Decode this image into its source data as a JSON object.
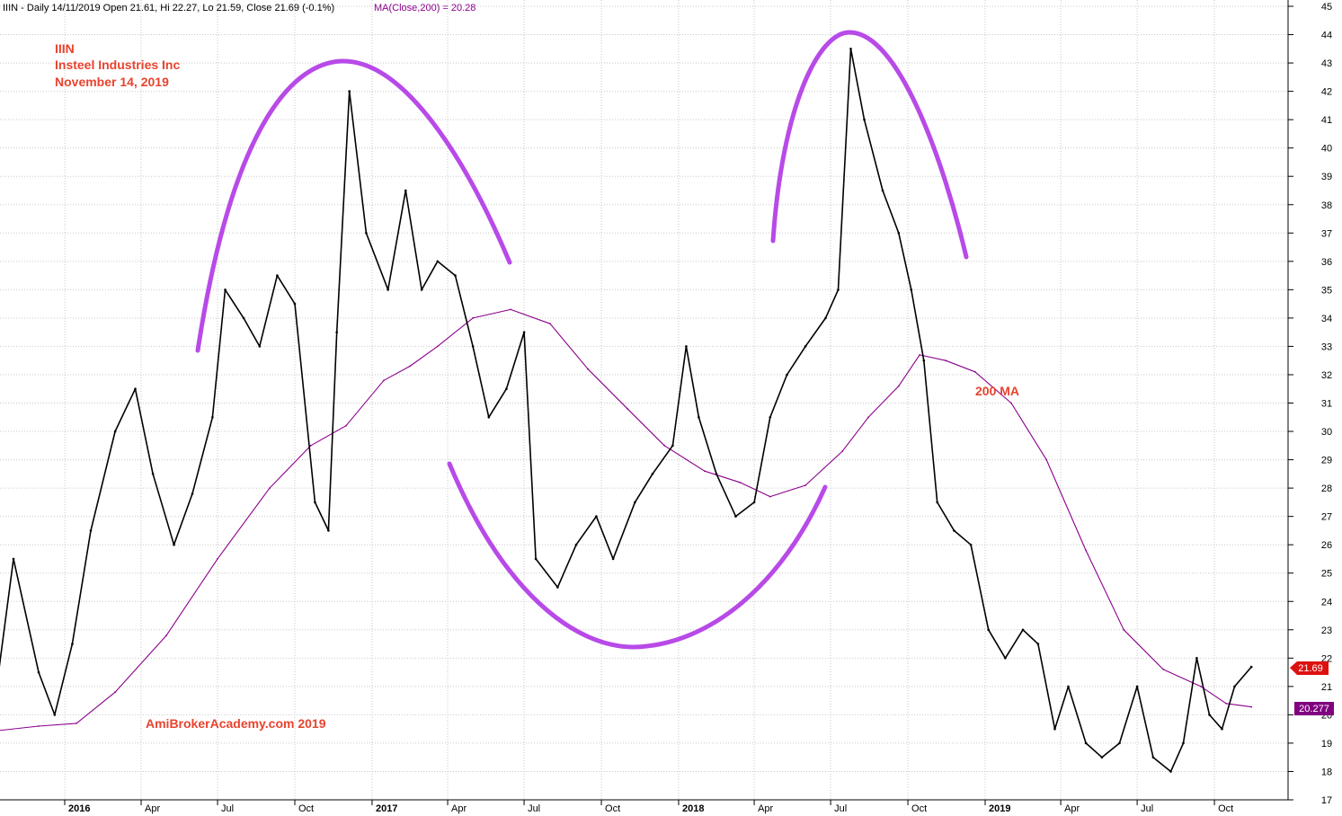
{
  "header": {
    "symbol_info": "IIIN - Daily 14/11/2019 Open 21.61, Hi 22.27, Lo 21.59, Close 21.69 (-0.1%)",
    "ma_info": "MA(Close,200) = 20.28"
  },
  "annotations": {
    "ticker": "IIIN",
    "company": "Insteel Industries Inc",
    "date": "November 14, 2019",
    "watermark": "AmiBrokerAcademy.com  2019",
    "ma_label": "200 MA"
  },
  "price_tags": {
    "last_close": "21.69",
    "ma_value": "20.277"
  },
  "colors": {
    "price": "#000000",
    "ma": "#8b008b",
    "arc": "#b84ae8",
    "annotation": "#e8432e",
    "close_tag": "#dd1111",
    "ma_tag": "#800080",
    "grid": "#c8c8c8"
  },
  "chart_data": {
    "type": "line",
    "title": "",
    "xlabel": "",
    "ylabel": "",
    "ylim": [
      17,
      45
    ],
    "yticks": [
      17,
      18,
      19,
      20,
      21,
      22,
      23,
      24,
      25,
      26,
      27,
      28,
      29,
      30,
      31,
      32,
      33,
      34,
      35,
      36,
      37,
      38,
      39,
      40,
      41,
      42,
      43,
      44,
      45
    ],
    "x_tick_labels": [
      "2016",
      "Apr",
      "Jul",
      "Oct",
      "2017",
      "Apr",
      "Jul",
      "Oct",
      "2018",
      "Apr",
      "Jul",
      "Oct",
      "2019",
      "Apr",
      "Jul",
      "Oct"
    ],
    "x_tick_dates": [
      "2016-01",
      "2016-04",
      "2016-07",
      "2016-10",
      "2017-01",
      "2017-04",
      "2017-07",
      "2017-10",
      "2018-01",
      "2018-04",
      "2018-07",
      "2018-10",
      "2019-01",
      "2019-04",
      "2019-07",
      "2019-10"
    ],
    "grid": true,
    "series": [
      {
        "name": "IIIN",
        "x": [
          "2015-10-01",
          "2015-11-01",
          "2015-12-01",
          "2015-12-20",
          "2016-01-10",
          "2016-02-01",
          "2016-03-01",
          "2016-03-25",
          "2016-04-15",
          "2016-05-10",
          "2016-06-01",
          "2016-06-25",
          "2016-07-10",
          "2016-08-01",
          "2016-08-20",
          "2016-09-10",
          "2016-10-01",
          "2016-10-25",
          "2016-11-10",
          "2016-11-20",
          "2016-12-05",
          "2016-12-25",
          "2017-01-20",
          "2017-02-10",
          "2017-03-01",
          "2017-03-20",
          "2017-04-10",
          "2017-05-01",
          "2017-05-20",
          "2017-06-10",
          "2017-07-01",
          "2017-07-15",
          "2017-08-10",
          "2017-09-01",
          "2017-09-25",
          "2017-10-15",
          "2017-11-10",
          "2017-12-01",
          "2017-12-25",
          "2018-01-10",
          "2018-01-25",
          "2018-02-15",
          "2018-03-10",
          "2018-04-01",
          "2018-04-20",
          "2018-05-10",
          "2018-06-01",
          "2018-06-25",
          "2018-07-10",
          "2018-07-25",
          "2018-08-10",
          "2018-09-01",
          "2018-09-20",
          "2018-10-05",
          "2018-10-20",
          "2018-11-05",
          "2018-11-25",
          "2018-12-15",
          "2019-01-05",
          "2019-01-25",
          "2019-02-15",
          "2019-03-05",
          "2019-03-25",
          "2019-04-10",
          "2019-05-01",
          "2019-05-20",
          "2019-06-10",
          "2019-07-01",
          "2019-07-20",
          "2019-08-10",
          "2019-08-25",
          "2019-09-10",
          "2019-09-25",
          "2019-10-10",
          "2019-10-25",
          "2019-11-14"
        ],
        "values": [
          18.5,
          25.5,
          21.5,
          20.0,
          22.5,
          26.5,
          30.0,
          31.5,
          28.5,
          26.0,
          27.8,
          30.5,
          35.0,
          34.0,
          33.0,
          35.5,
          34.5,
          27.5,
          26.5,
          33.5,
          42.0,
          37.0,
          35.0,
          38.5,
          35.0,
          36.0,
          35.5,
          33.0,
          30.5,
          31.5,
          33.5,
          25.5,
          24.5,
          26.0,
          27.0,
          25.5,
          27.5,
          28.5,
          29.5,
          33.0,
          30.5,
          28.5,
          27.0,
          27.5,
          30.5,
          32.0,
          33.0,
          34.0,
          35.0,
          43.5,
          41.0,
          38.5,
          37.0,
          35.0,
          32.5,
          27.5,
          26.5,
          26.0,
          23.0,
          22.0,
          23.0,
          22.5,
          19.5,
          21.0,
          19.0,
          18.5,
          19.0,
          21.0,
          18.5,
          18.0,
          19.0,
          22.0,
          20.0,
          19.5,
          21.0,
          21.69
        ]
      },
      {
        "name": "MA(Close,200)",
        "x": [
          "2015-10-01",
          "2015-12-01",
          "2016-01-15",
          "2016-03-01",
          "2016-05-01",
          "2016-07-01",
          "2016-09-01",
          "2016-10-20",
          "2016-12-01",
          "2017-01-15",
          "2017-02-15",
          "2017-03-20",
          "2017-05-01",
          "2017-06-15",
          "2017-08-01",
          "2017-09-15",
          "2017-11-01",
          "2017-12-15",
          "2018-02-01",
          "2018-03-15",
          "2018-04-20",
          "2018-06-01",
          "2018-07-15",
          "2018-08-15",
          "2018-09-20",
          "2018-10-15",
          "2018-11-15",
          "2018-12-20",
          "2019-02-01",
          "2019-03-15",
          "2019-05-01",
          "2019-06-15",
          "2019-08-01",
          "2019-09-15",
          "2019-10-15",
          "2019-11-14"
        ],
        "values": [
          19.4,
          19.6,
          19.7,
          20.8,
          22.8,
          25.5,
          28.0,
          29.5,
          30.2,
          31.8,
          32.3,
          33.0,
          34.0,
          34.3,
          33.8,
          32.2,
          30.8,
          29.5,
          28.6,
          28.2,
          27.7,
          28.1,
          29.3,
          30.5,
          31.6,
          32.7,
          32.5,
          32.1,
          31.0,
          29.0,
          25.8,
          23.0,
          21.6,
          21.0,
          20.4,
          20.28
        ]
      }
    ]
  }
}
